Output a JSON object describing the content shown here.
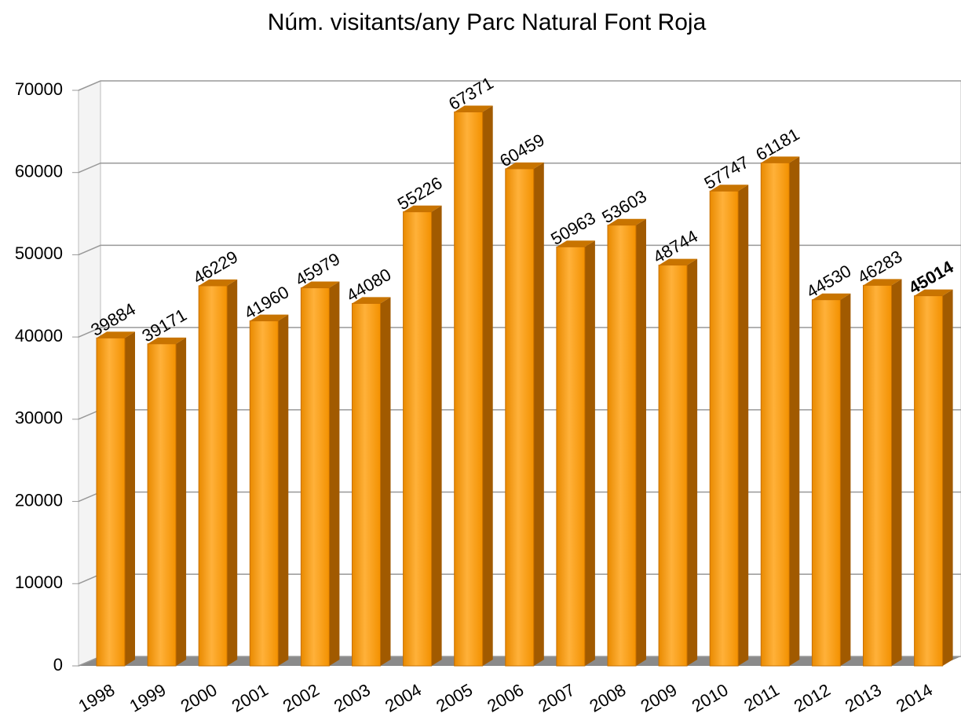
{
  "chart_data": {
    "type": "bar3d",
    "title": "Núm. visitants/any Parc Natural Font Roja",
    "categories": [
      "1998",
      "1999",
      "2000",
      "2001",
      "2002",
      "2003",
      "2004",
      "2005",
      "2006",
      "2007",
      "2008",
      "2009",
      "2010",
      "2011",
      "2012",
      "2013",
      "2014"
    ],
    "values": [
      39884,
      39171,
      46229,
      41960,
      45979,
      44080,
      55226,
      67371,
      60459,
      50963,
      53603,
      48744,
      57747,
      61181,
      44530,
      46283,
      45014
    ],
    "color": "#f99b14",
    "value_label_colors": [
      "#000000",
      "#000000",
      "#000000",
      "#000000",
      "#000000",
      "#000000",
      "#000000",
      "#000000",
      "#000000",
      "#000000",
      "#000000",
      "#000000",
      "#000000",
      "#000000",
      "#000000",
      "#000000",
      "#ff3333"
    ],
    "ylim": [
      0,
      70000
    ],
    "yticks": [
      0,
      10000,
      20000,
      30000,
      40000,
      50000,
      60000,
      70000
    ],
    "grid": true
  }
}
